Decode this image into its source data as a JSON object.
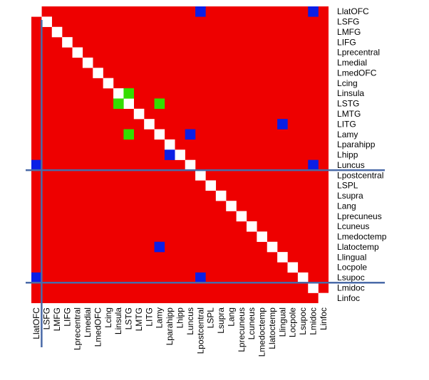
{
  "chart_data": {
    "type": "heatmap",
    "title": "",
    "labels": [
      "LlatOFC",
      "LSFG",
      "LMFG",
      "LIFG",
      "Lprecentral",
      "Lmedial",
      "LmedOFC",
      "Lcing",
      "Linsula",
      "LSTG",
      "LMTG",
      "LITG",
      "Lamy",
      "Lparahipp",
      "Lhipp",
      "Luncus",
      "Lpostcentral",
      "LSPL",
      "Lsupra",
      "Lang",
      "Lprecuneus",
      "Lcuneus",
      "Lmedoctemp",
      "Llatoctemp",
      "Llingual",
      "Locpole",
      "Lsupoc",
      "Lmidoc",
      "Linfoc"
    ],
    "colors": {
      "background": "#ee0000",
      "diagonal": "#ffffff",
      "blue": "#0a1ee6",
      "green": "#33dd00",
      "lines": "#4a6aa8"
    },
    "green_cells": [
      [
        8,
        9
      ],
      [
        9,
        8
      ],
      [
        9,
        12
      ],
      [
        12,
        9
      ]
    ],
    "blue_cells": [
      [
        0,
        16
      ],
      [
        0,
        27
      ],
      [
        11,
        24
      ],
      [
        12,
        15
      ],
      [
        14,
        13
      ],
      [
        15,
        0
      ],
      [
        15,
        27
      ],
      [
        23,
        12
      ],
      [
        26,
        0
      ],
      [
        26,
        16
      ]
    ],
    "separator_lines": {
      "horizontal_after_rows": [
        "Luncus",
        "Lsupoc"
      ],
      "vertical_after_columns": [
        "LlatOFC"
      ]
    },
    "xlabel": "",
    "ylabel": ""
  }
}
